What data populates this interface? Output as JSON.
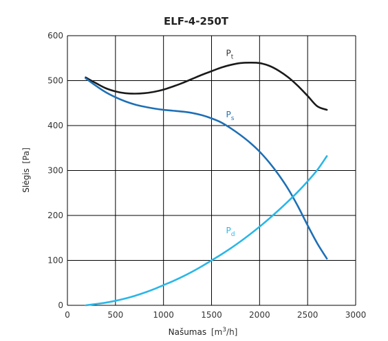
{
  "chart_data": {
    "type": "line",
    "title": "ELF-4-250T",
    "xlabel": "Našumas",
    "xlabel_unit_open": "[m",
    "xlabel_unit_sup": "3",
    "xlabel_unit_close": "/h]",
    "ylabel": "Slėgis",
    "ylabel_unit": "[Pa]",
    "xlim": [
      0,
      3000
    ],
    "ylim": [
      0,
      600
    ],
    "x_ticks": [
      0,
      500,
      1000,
      1500,
      2000,
      2500,
      3000
    ],
    "y_ticks": [
      0,
      100,
      200,
      300,
      400,
      500,
      600
    ],
    "grid": true,
    "series": [
      {
        "name": "P",
        "subscript": "t",
        "color": "#1a1a1a",
        "x": [
          190,
          300,
          400,
          500,
          600,
          700,
          800,
          900,
          1000,
          1100,
          1200,
          1300,
          1400,
          1500,
          1600,
          1700,
          1800,
          1900,
          2000,
          2100,
          2200,
          2300,
          2400,
          2500,
          2600,
          2700
        ],
        "y": [
          507,
          494,
          483,
          476,
          472,
          471,
          472,
          475,
          480,
          487,
          495,
          504,
          513,
          521,
          529,
          535,
          539,
          540,
          539,
          533,
          522,
          507,
          488,
          466,
          443,
          435
        ]
      },
      {
        "name": "P",
        "subscript": "s",
        "color": "#1e6fb5",
        "x": [
          190,
          300,
          400,
          500,
          600,
          700,
          800,
          900,
          1000,
          1100,
          1200,
          1300,
          1400,
          1500,
          1600,
          1700,
          1800,
          1900,
          2000,
          2100,
          2200,
          2300,
          2400,
          2500,
          2600,
          2700
        ],
        "y": [
          505,
          488,
          474,
          463,
          454,
          447,
          442,
          438,
          435,
          433,
          431,
          428,
          423,
          416,
          407,
          394,
          379,
          362,
          342,
          318,
          290,
          258,
          220,
          178,
          138,
          104
        ]
      },
      {
        "name": "P",
        "subscript": "d",
        "color": "#29b6e8",
        "x": [
          190,
          300,
          400,
          500,
          600,
          700,
          800,
          900,
          1000,
          1100,
          1200,
          1300,
          1400,
          1500,
          1600,
          1700,
          1800,
          1900,
          2000,
          2100,
          2200,
          2300,
          2400,
          2500,
          2600,
          2700
        ],
        "y": [
          0,
          3,
          6,
          10,
          15,
          21,
          28,
          36,
          45,
          54,
          64,
          75,
          87,
          100,
          113,
          127,
          142,
          158,
          175,
          193,
          212,
          232,
          253,
          276,
          301,
          332
        ]
      }
    ],
    "series_label_positions": [
      {
        "x": 1650,
        "y": 555
      },
      {
        "x": 1650,
        "y": 418
      },
      {
        "x": 1650,
        "y": 160
      }
    ]
  }
}
